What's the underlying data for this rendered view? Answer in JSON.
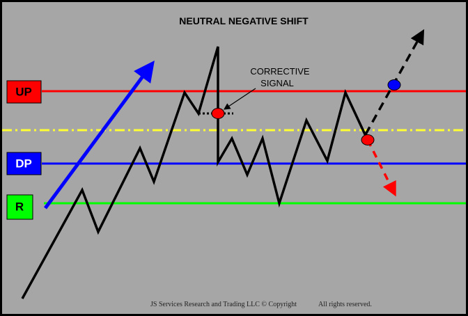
{
  "title": "NEUTRAL NEGATIVE SHIFT",
  "annotation": {
    "line1": "CORRECTIVE",
    "line2": "SIGNAL"
  },
  "levels": {
    "up": {
      "label": "UP",
      "color": "#ff0000",
      "text_color": "#000000"
    },
    "dp": {
      "label": "DP",
      "color": "#0000ff",
      "text_color": "#ffffff"
    },
    "r": {
      "label": "R",
      "color": "#00ff00",
      "text_color": "#000000"
    },
    "neutral_line_color": "#ffff33"
  },
  "colors": {
    "background": "#a6a6a6",
    "frame": "#000000",
    "trend_arrow": "#0000ff",
    "price_line": "#000000",
    "signal_dot_red": "#ff0000",
    "signal_dot_blue": "#0000ff",
    "down_projection": "#ff0000",
    "up_projection": "#000000"
  },
  "footer": {
    "left": "JS Services Research and Trading LLC © Copyright",
    "right": "All rights reserved."
  }
}
